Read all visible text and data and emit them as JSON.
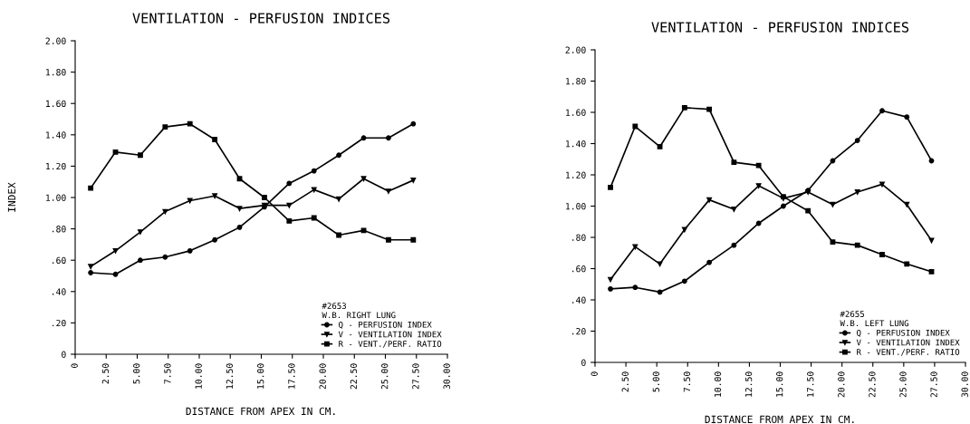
{
  "chart_data": [
    {
      "type": "line",
      "title": "VENTILATION - PERFUSION INDICES",
      "xlabel": "DISTANCE FROM APEX IN CM.",
      "ylabel": "INDEX",
      "x": [
        1.25,
        3.25,
        5.25,
        7.25,
        9.25,
        11.25,
        13.25,
        15.25,
        17.25,
        19.25,
        21.25,
        23.25,
        25.25,
        27.25
      ],
      "xlim": [
        0,
        30
      ],
      "xticks": [
        0,
        {
          "value": 2.5,
          "label": "2.50"
        },
        {
          "value": 5,
          "label": "5.00"
        },
        {
          "value": 7.5,
          "label": "7.50"
        },
        {
          "value": 10,
          "label": "10.00"
        },
        {
          "value": 12.5,
          "label": "12.50"
        },
        {
          "value": 15,
          "label": "15.00"
        },
        {
          "value": 17.5,
          "label": "17.50"
        },
        {
          "value": 20,
          "label": "20.00"
        },
        {
          "value": 22.5,
          "label": "22.50"
        },
        {
          "value": 25,
          "label": "25.00"
        },
        {
          "value": 27.5,
          "label": "27.50"
        },
        {
          "value": 30,
          "label": "30.00"
        }
      ],
      "ylim": [
        0,
        2
      ],
      "yticks": [
        0,
        {
          "value": 0.2,
          "label": ".20"
        },
        {
          "value": 0.4,
          "label": ".40"
        },
        {
          "value": 0.6,
          "label": ".60"
        },
        {
          "value": 0.8,
          "label": ".80"
        },
        {
          "value": 1,
          "label": "1.00"
        },
        {
          "value": 1.2,
          "label": "1.20"
        },
        {
          "value": 1.4,
          "label": "1.40"
        },
        {
          "value": 1.6,
          "label": "1.60"
        },
        {
          "value": 1.8,
          "label": "1.80"
        },
        {
          "value": 2,
          "label": "2.00"
        }
      ],
      "legend": "bottom right",
      "legend_title": "#2653\nW.B. RIGHT LUNG",
      "grid": false,
      "series": [
        {
          "name": "Q - PERFUSION INDEX",
          "color": "#000000",
          "marker": "circle",
          "values": [
            0.52,
            0.51,
            0.6,
            0.62,
            0.66,
            0.73,
            0.81,
            0.94,
            1.09,
            1.17,
            1.27,
            1.38,
            1.38,
            1.47
          ]
        },
        {
          "name": "V - VENTILATION INDEX",
          "color": "#000000",
          "marker": "triangle",
          "values": [
            0.56,
            0.66,
            0.78,
            0.91,
            0.98,
            1.01,
            0.93,
            0.95,
            0.95,
            1.05,
            0.99,
            1.12,
            1.04,
            1.11
          ]
        },
        {
          "name": "R - VENT./PERF. RATIO",
          "color": "#000000",
          "marker": "square",
          "values": [
            1.06,
            1.29,
            1.27,
            1.45,
            1.47,
            1.37,
            1.12,
            1.0,
            0.85,
            0.87,
            0.76,
            0.79,
            0.73,
            0.73
          ]
        }
      ]
    },
    {
      "type": "line",
      "title": "VENTILATION - PERFUSION INDICES",
      "xlabel": "DISTANCE FROM APEX IN CM.",
      "x": [
        1.25,
        3.25,
        5.25,
        7.25,
        9.25,
        11.25,
        13.25,
        15.25,
        17.25,
        19.25,
        21.25,
        23.25,
        25.25,
        27.25
      ],
      "xlim": [
        0,
        30
      ],
      "xticks": [
        0,
        {
          "value": 2.5,
          "label": "2.50"
        },
        {
          "value": 5,
          "label": "5.00"
        },
        {
          "value": 7.5,
          "label": "7.50"
        },
        {
          "value": 10,
          "label": "10.00"
        },
        {
          "value": 12.5,
          "label": "12.50"
        },
        {
          "value": 15,
          "label": "15.00"
        },
        {
          "value": 17.5,
          "label": "17.50"
        },
        {
          "value": 20,
          "label": "20.00"
        },
        {
          "value": 22.5,
          "label": "22.50"
        },
        {
          "value": 25,
          "label": "25.00"
        },
        {
          "value": 27.5,
          "label": "27.50"
        },
        {
          "value": 30,
          "label": "30.00"
        }
      ],
      "ylim": [
        0,
        2
      ],
      "yticks": [
        0,
        {
          "value": 0.2,
          "label": ".20"
        },
        {
          "value": 0.4,
          "label": ".40"
        },
        {
          "value": 0.6,
          "label": ".60"
        },
        {
          "value": 0.8,
          "label": ".80"
        },
        {
          "value": 1,
          "label": "1.00"
        },
        {
          "value": 1.2,
          "label": "1.20"
        },
        {
          "value": 1.4,
          "label": "1.40"
        },
        {
          "value": 1.6,
          "label": "1.60"
        },
        {
          "value": 1.8,
          "label": "1.80"
        },
        {
          "value": 2,
          "label": "2.00"
        }
      ],
      "legend": "bottom right",
      "legend_title": "#2655\nW.B. LEFT LUNG",
      "grid": false,
      "series": [
        {
          "name": "Q - PERFUSION INDEX",
          "color": "#000000",
          "marker": "circle",
          "values": [
            0.47,
            0.48,
            0.45,
            0.52,
            0.64,
            0.75,
            0.89,
            1.0,
            1.1,
            1.29,
            1.42,
            1.61,
            1.57,
            1.29
          ]
        },
        {
          "name": "V - VENTILATION INDEX",
          "color": "#000000",
          "marker": "triangle",
          "values": [
            0.53,
            0.74,
            0.63,
            0.85,
            1.04,
            0.98,
            1.13,
            1.05,
            1.09,
            1.01,
            1.09,
            1.14,
            1.01,
            0.78
          ]
        },
        {
          "name": "R - VENT./PERF. RATIO",
          "color": "#000000",
          "marker": "square",
          "values": [
            1.12,
            1.51,
            1.38,
            1.63,
            1.62,
            1.28,
            1.26,
            1.06,
            0.97,
            0.77,
            0.75,
            0.69,
            0.63,
            0.58
          ]
        }
      ]
    }
  ]
}
